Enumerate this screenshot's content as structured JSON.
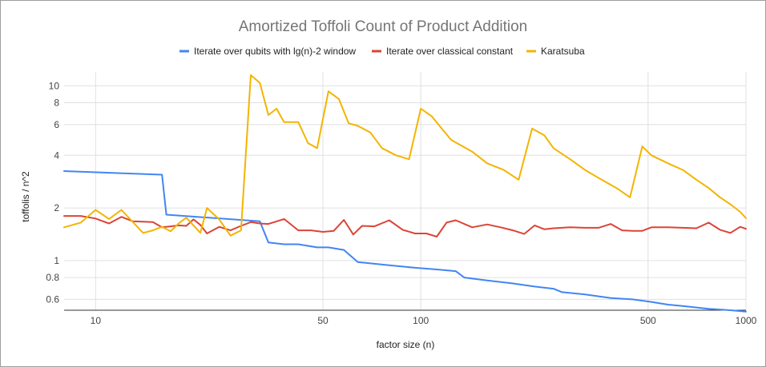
{
  "chart_data": {
    "type": "line",
    "title": "Amortized Toffoli Count of Product Addition",
    "xlabel": "factor size (n)",
    "ylabel": "toffolis / n^2",
    "x_scale": "log",
    "y_scale": "log",
    "xlim": [
      8,
      1000
    ],
    "ylim": [
      0.52,
      12
    ],
    "x_ticks": [
      10,
      50,
      100,
      500,
      1000
    ],
    "x_tick_labels": [
      "10",
      "50",
      "100",
      "500",
      "1000"
    ],
    "y_ticks": [
      0.6,
      0.8,
      1,
      2,
      4,
      6,
      8,
      10
    ],
    "y_tick_labels": [
      "0.6",
      "0.8",
      "1",
      "2",
      "4",
      "6",
      "8",
      "10"
    ],
    "grid": true,
    "legend_position": "top",
    "series": [
      {
        "name": "Iterate over qubits with lg(n)-2 window",
        "color": "#4285f4",
        "x": [
          8,
          16,
          16.5,
          32,
          34,
          38,
          42,
          48,
          52,
          58,
          64,
          80,
          96,
          112,
          128,
          136,
          160,
          192,
          224,
          256,
          272,
          320,
          384,
          448,
          512,
          576,
          640,
          768,
          896,
          1000
        ],
        "y": [
          3.25,
          3.1,
          1.83,
          1.68,
          1.27,
          1.24,
          1.24,
          1.19,
          1.19,
          1.15,
          0.98,
          0.94,
          0.91,
          0.89,
          0.87,
          0.8,
          0.77,
          0.74,
          0.71,
          0.69,
          0.66,
          0.64,
          0.61,
          0.6,
          0.58,
          0.56,
          0.55,
          0.53,
          0.52,
          0.51
        ]
      },
      {
        "name": "Iterate over classical constant",
        "color": "#db4437",
        "x": [
          8,
          9,
          10,
          11,
          12,
          13,
          14,
          15,
          16,
          17,
          18,
          19,
          20,
          21,
          22,
          24,
          26,
          28,
          30,
          32,
          34,
          38,
          42,
          46,
          50,
          54,
          58,
          62,
          66,
          72,
          80,
          88,
          96,
          104,
          112,
          120,
          128,
          144,
          160,
          176,
          192,
          208,
          224,
          240,
          256,
          288,
          320,
          352,
          384,
          416,
          448,
          480,
          512,
          576,
          640,
          704,
          768,
          832,
          896,
          960,
          1000
        ],
        "y": [
          1.8,
          1.8,
          1.74,
          1.63,
          1.78,
          1.68,
          1.67,
          1.66,
          1.55,
          1.57,
          1.59,
          1.58,
          1.72,
          1.6,
          1.43,
          1.56,
          1.49,
          1.58,
          1.66,
          1.63,
          1.62,
          1.73,
          1.49,
          1.49,
          1.46,
          1.48,
          1.71,
          1.41,
          1.58,
          1.57,
          1.7,
          1.5,
          1.43,
          1.43,
          1.37,
          1.65,
          1.7,
          1.55,
          1.61,
          1.55,
          1.49,
          1.42,
          1.59,
          1.51,
          1.53,
          1.55,
          1.54,
          1.54,
          1.62,
          1.49,
          1.48,
          1.48,
          1.55,
          1.55,
          1.54,
          1.53,
          1.65,
          1.5,
          1.44,
          1.56,
          1.52
        ]
      },
      {
        "name": "Karatsuba",
        "color": "#f4b400",
        "x": [
          8,
          9,
          10,
          11,
          12,
          14,
          15,
          16,
          17,
          18,
          19,
          21,
          22,
          24,
          26,
          28,
          30,
          32,
          34,
          36,
          38,
          42,
          45,
          48,
          52,
          56,
          60,
          64,
          70,
          76,
          84,
          92,
          100,
          108,
          116,
          124,
          144,
          160,
          180,
          200,
          220,
          240,
          256,
          288,
          320,
          360,
          400,
          440,
          480,
          512,
          576,
          640,
          704,
          768,
          832,
          896,
          960,
          1000
        ],
        "y": [
          1.55,
          1.65,
          1.95,
          1.73,
          1.95,
          1.44,
          1.49,
          1.56,
          1.47,
          1.63,
          1.76,
          1.44,
          2.0,
          1.72,
          1.39,
          1.49,
          11.5,
          10.4,
          6.8,
          7.4,
          6.2,
          6.2,
          4.7,
          4.4,
          9.3,
          8.4,
          6.1,
          5.9,
          5.4,
          4.4,
          4.0,
          3.8,
          7.4,
          6.7,
          5.7,
          4.9,
          4.2,
          3.6,
          3.3,
          2.9,
          5.7,
          5.2,
          4.4,
          3.8,
          3.3,
          2.9,
          2.6,
          2.3,
          4.5,
          4.0,
          3.6,
          3.3,
          2.9,
          2.6,
          2.3,
          2.1,
          1.9,
          1.75
        ]
      }
    ]
  }
}
